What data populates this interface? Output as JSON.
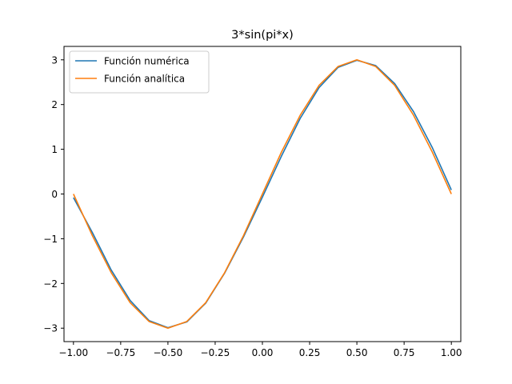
{
  "chart_data": {
    "type": "line",
    "title": "3*sin(pi*x)",
    "xlabel": "",
    "ylabel": "",
    "xlim": [
      -1.05,
      1.05
    ],
    "ylim": [
      -3.3,
      3.3
    ],
    "x_ticks": [
      -1.0,
      -0.75,
      -0.5,
      -0.25,
      0.0,
      0.25,
      0.5,
      0.75,
      1.0
    ],
    "x_tick_labels": [
      "−1.00",
      "−0.75",
      "−0.50",
      "−0.25",
      "0.00",
      "0.25",
      "0.50",
      "0.75",
      "1.00"
    ],
    "y_ticks": [
      -3,
      -2,
      -1,
      0,
      1,
      2,
      3
    ],
    "y_tick_labels": [
      "−3",
      "−2",
      "−1",
      "0",
      "1",
      "2",
      "3"
    ],
    "grid": false,
    "legend_position": "upper-left",
    "series": [
      {
        "name": "Función numérica",
        "color": "#1f77b4",
        "x": [
          -1.0,
          -0.9,
          -0.8,
          -0.7,
          -0.6,
          -0.5,
          -0.4,
          -0.3,
          -0.2,
          -0.1,
          0.0,
          0.1,
          0.2,
          0.3,
          0.4,
          0.5,
          0.6,
          0.7,
          0.8,
          0.9,
          1.0
        ],
        "y": [
          -0.08,
          -0.86,
          -1.7,
          -2.38,
          -2.83,
          -2.99,
          -2.86,
          -2.44,
          -1.77,
          -0.96,
          -0.07,
          0.84,
          1.69,
          2.38,
          2.83,
          2.99,
          2.87,
          2.47,
          1.84,
          1.03,
          0.09
        ]
      },
      {
        "name": "Función analítica",
        "color": "#ff7f0e",
        "x": [
          -1.0,
          -0.9,
          -0.8,
          -0.7,
          -0.6,
          -0.5,
          -0.4,
          -0.3,
          -0.2,
          -0.1,
          0.0,
          0.1,
          0.2,
          0.3,
          0.4,
          0.5,
          0.6,
          0.7,
          0.8,
          0.9,
          1.0
        ],
        "y": [
          0.0,
          -0.93,
          -1.76,
          -2.43,
          -2.85,
          -3.0,
          -2.85,
          -2.43,
          -1.76,
          -0.93,
          0.0,
          0.93,
          1.76,
          2.43,
          2.85,
          3.0,
          2.85,
          2.43,
          1.76,
          0.93,
          0.0
        ]
      }
    ]
  }
}
